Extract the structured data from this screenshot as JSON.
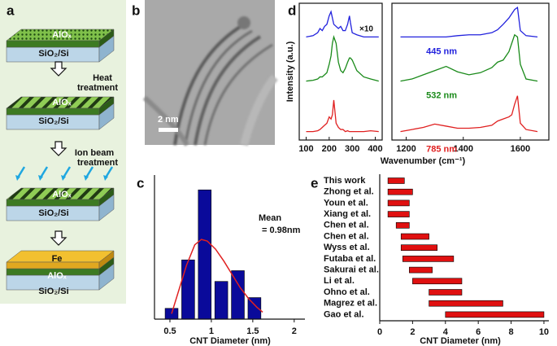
{
  "panels": {
    "a": {
      "label": "a",
      "alox_1": "AlOₓ",
      "sio2_1": "SiO₂/Si",
      "step_1": [
        "Heat",
        "treatment"
      ],
      "alox_2": "AlOₓ",
      "sio2_2": "SiO₂/Si",
      "step_2": [
        "Ion beam",
        "treatment"
      ],
      "alox_3": "AlOₓ",
      "sio2_3": "SiO₂/Si",
      "fe": "Fe",
      "alox_4": "AlOₓ",
      "sio2_4": "SiO₂/Si"
    },
    "b": {
      "label": "b",
      "scale_bar": "2 nm"
    }
  },
  "chart_data": [
    {
      "type": "spectra",
      "panel_label": "d",
      "ylabel": "Intensity (a.u.)",
      "xlabel": "Wavenumber (cm⁻¹)",
      "ylim": [
        0,
        3.25
      ],
      "panels": [
        {
          "xlim": [
            70,
            430
          ],
          "xticks": [
            100,
            200,
            300,
            400
          ],
          "annotation": "×10",
          "x": [
            100,
            130,
            150,
            160,
            170,
            180,
            190,
            200,
            208,
            214,
            220,
            230,
            240,
            250,
            260,
            270,
            280,
            288,
            292,
            300,
            320,
            350,
            380,
            415
          ],
          "series": [
            {
              "color": "#2222dd",
              "values": [
                2.45,
                2.48,
                2.55,
                2.65,
                2.6,
                2.7,
                2.75,
                2.95,
                3.05,
                2.9,
                2.75,
                2.7,
                2.65,
                2.7,
                2.6,
                2.6,
                2.75,
                2.95,
                2.8,
                2.55,
                2.5,
                2.45,
                2.45,
                2.45
              ]
            },
            {
              "color": "#1a8a1a",
              "values": [
                1.4,
                1.42,
                1.45,
                1.5,
                1.5,
                1.55,
                1.6,
                1.8,
                2.0,
                2.3,
                2.45,
                2.3,
                1.85,
                1.65,
                1.6,
                1.7,
                1.85,
                1.95,
                1.95,
                1.9,
                1.65,
                1.5,
                1.45,
                1.4
              ]
            },
            {
              "color": "#e02020",
              "values": [
                0.2,
                0.2,
                0.22,
                0.25,
                0.3,
                0.35,
                0.4,
                0.55,
                0.5,
                0.6,
                0.95,
                0.4,
                0.3,
                0.25,
                0.25,
                0.2,
                0.22,
                0.2,
                0.2,
                0.2,
                0.2,
                0.2,
                0.22,
                0.2
              ]
            }
          ]
        },
        {
          "xlim": [
            1150,
            1700
          ],
          "xticks": [
            1200,
            1400,
            1600
          ],
          "x": [
            1180,
            1220,
            1260,
            1300,
            1340,
            1380,
            1420,
            1460,
            1500,
            1520,
            1540,
            1560,
            1570,
            1580,
            1590,
            1600,
            1620,
            1660
          ],
          "series": [
            {
              "name": "445 nm",
              "color": "#2222dd",
              "values": [
                2.45,
                2.45,
                2.45,
                2.45,
                2.45,
                2.48,
                2.5,
                2.5,
                2.55,
                2.62,
                2.75,
                2.9,
                3.0,
                3.1,
                3.15,
                2.6,
                2.48,
                2.45
              ]
            },
            {
              "name": "532 nm",
              "color": "#1a8a1a",
              "values": [
                1.4,
                1.45,
                1.55,
                1.65,
                1.75,
                1.62,
                1.55,
                1.6,
                1.72,
                1.85,
                1.9,
                2.1,
                2.3,
                2.5,
                2.45,
                1.8,
                1.45,
                1.4
              ]
            },
            {
              "name": "785 nm",
              "color": "#e02020",
              "values": [
                0.2,
                0.25,
                0.3,
                0.38,
                0.33,
                0.28,
                0.28,
                0.3,
                0.35,
                0.45,
                0.5,
                0.55,
                0.6,
                0.85,
                1.05,
                0.4,
                0.25,
                0.2
              ]
            }
          ]
        }
      ]
    },
    {
      "type": "histogram",
      "panel_label": "c",
      "xlabel": "CNT Diameter (nm)",
      "annotation": [
        "Mean",
        "= 0.98nm"
      ],
      "bins": [
        0.42,
        0.62,
        0.82,
        1.02,
        1.22,
        1.42,
        1.62
      ],
      "values": [
        2,
        11,
        24,
        7,
        9,
        4
      ],
      "color": "#0a0a9a",
      "xlim": [
        0.3,
        2.1
      ],
      "xticks": [
        0.5,
        1.0,
        1.5,
        2.0
      ],
      "ylim": [
        0,
        26
      ],
      "fit": {
        "color": "#e02020",
        "x": [
          0.52,
          0.6,
          0.7,
          0.8,
          0.88,
          0.95,
          1.05,
          1.15,
          1.25,
          1.35,
          1.45,
          1.55,
          1.62
        ],
        "values": [
          1,
          5,
          10,
          13.8,
          14.8,
          14.5,
          13,
          10.8,
          8.3,
          5.8,
          3.8,
          2.2,
          1.3
        ]
      }
    },
    {
      "type": "range-bar",
      "panel_label": "e",
      "xlabel": "CNT Diameter (nm)",
      "color": "#e01010",
      "categories": [
        "This work",
        "Zhong et al.",
        "Youn et al.",
        "Xiang et al.",
        "Chen et al.",
        "Chen et al.",
        "Wyss et al.",
        "Futaba et al.",
        "Sakurai et al.",
        "Li et al.",
        "Ohno et al.",
        "Magrez et al.",
        "Gao et al."
      ],
      "starts": [
        0.5,
        0.5,
        0.5,
        0.5,
        1,
        1.3,
        1.3,
        1.4,
        1.8,
        2,
        3,
        3,
        4
      ],
      "ends": [
        1.5,
        2,
        1.8,
        1.8,
        1.8,
        3,
        3.5,
        4.5,
        3.2,
        5,
        5,
        7.5,
        10
      ],
      "xlim": [
        0,
        10.3
      ],
      "xticks": [
        0,
        2,
        4,
        6,
        8,
        10
      ]
    }
  ]
}
